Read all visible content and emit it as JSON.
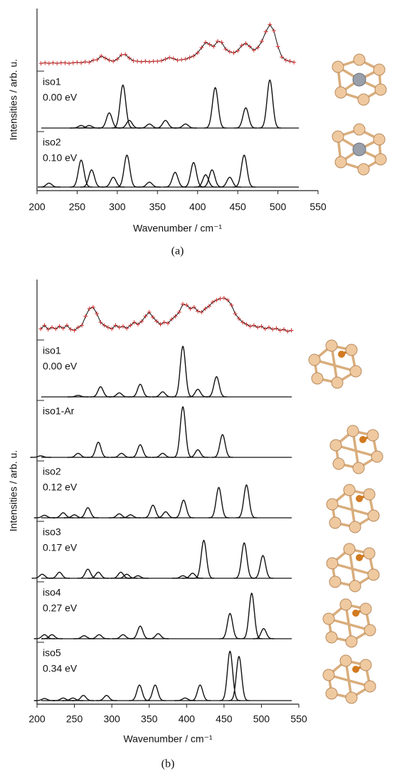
{
  "chart_data": [
    {
      "type": "line",
      "caption": "(a)",
      "xlabel": "Wavenumber / cm⁻¹",
      "ylabel": "Intensities / arb. u.",
      "xlim": [
        200,
        550
      ],
      "xticks": [
        200,
        250,
        300,
        350,
        400,
        450,
        500,
        550
      ],
      "ylim": [
        0,
        100
      ],
      "series": [
        {
          "type": "line",
          "marker": "+",
          "color": "#d03030",
          "x": [
            205,
            210,
            215,
            220,
            225,
            230,
            235,
            240,
            245,
            250,
            255,
            260,
            265,
            270,
            275,
            280,
            285,
            290,
            295,
            300,
            305,
            310,
            315,
            320,
            325,
            330,
            335,
            340,
            345,
            350,
            355,
            360,
            365,
            370,
            375,
            380,
            385,
            390,
            395,
            400,
            405,
            410,
            415,
            420,
            425,
            430,
            435,
            440,
            445,
            450,
            455,
            460,
            465,
            470,
            475,
            480,
            485,
            490,
            495,
            500,
            505,
            510,
            515,
            520
          ],
          "values": [
            8,
            9,
            8,
            9,
            8,
            9,
            9,
            8,
            9,
            10,
            9,
            11,
            10,
            14,
            15,
            22,
            18,
            14,
            12,
            16,
            24,
            25,
            18,
            13,
            12,
            11,
            12,
            11,
            12,
            12,
            13,
            16,
            19,
            17,
            14,
            15,
            16,
            19,
            22,
            28,
            38,
            48,
            44,
            40,
            50,
            48,
            35,
            30,
            28,
            32,
            42,
            46,
            40,
            33,
            38,
            50,
            68,
            82,
            70,
            40,
            20,
            14,
            12,
            10
          ]
        },
        {
          "type": "peaks",
          "name": "iso1",
          "energy": "0.00 eV",
          "color": "#111111",
          "x": [
            255,
            265,
            290,
            307,
            315,
            340,
            360,
            385,
            422,
            460,
            490
          ],
          "values": [
            5,
            5,
            30,
            85,
            15,
            8,
            15,
            8,
            80,
            40,
            95
          ]
        },
        {
          "type": "peaks",
          "name": "iso2",
          "energy": "0.10 eV",
          "color": "#111111",
          "x": [
            215,
            255,
            268,
            295,
            312,
            340,
            372,
            395,
            410,
            418,
            440,
            458
          ],
          "values": [
            8,
            55,
            35,
            20,
            65,
            10,
            30,
            50,
            25,
            35,
            20,
            65
          ]
        }
      ]
    },
    {
      "type": "line",
      "caption": "(b)",
      "xlabel": "Wavenumber / cm⁻¹",
      "ylabel": "Intensities / arb. u.",
      "xlim": [
        200,
        550
      ],
      "xticks": [
        200,
        250,
        300,
        350,
        400,
        450,
        500,
        550
      ],
      "ylim": [
        0,
        100
      ],
      "series": [
        {
          "type": "line",
          "marker": "+",
          "color": "#d03030",
          "x": [
            205,
            210,
            215,
            220,
            225,
            230,
            235,
            240,
            245,
            250,
            255,
            260,
            265,
            270,
            275,
            280,
            285,
            290,
            295,
            300,
            305,
            310,
            315,
            320,
            325,
            330,
            335,
            340,
            345,
            350,
            355,
            360,
            365,
            370,
            375,
            380,
            385,
            390,
            395,
            400,
            405,
            410,
            415,
            420,
            425,
            430,
            435,
            440,
            445,
            450,
            455,
            460,
            465,
            470,
            475,
            480,
            485,
            490,
            495,
            500,
            505,
            510,
            515,
            520,
            525,
            530,
            535,
            540
          ],
          "values": [
            15,
            22,
            14,
            18,
            15,
            20,
            16,
            22,
            14,
            12,
            18,
            22,
            40,
            55,
            58,
            45,
            28,
            22,
            18,
            15,
            22,
            18,
            20,
            16,
            22,
            28,
            24,
            30,
            40,
            48,
            38,
            30,
            24,
            28,
            26,
            34,
            40,
            48,
            64,
            62,
            55,
            58,
            50,
            48,
            55,
            60,
            68,
            72,
            75,
            76,
            72,
            62,
            45,
            35,
            28,
            24,
            20,
            22,
            18,
            20,
            15,
            18,
            14,
            16,
            12,
            14,
            10,
            12
          ]
        },
        {
          "type": "peaks",
          "name": "iso1",
          "energy": "0.00 eV",
          "color": "#111111",
          "x": [
            255,
            285,
            310,
            338,
            368,
            395,
            415,
            440
          ],
          "values": [
            3,
            20,
            8,
            25,
            10,
            100,
            15,
            40
          ]
        },
        {
          "type": "peaks",
          "name": "iso1-Ar",
          "color": "#111111",
          "x": [
            205,
            255,
            282,
            313,
            338,
            368,
            395,
            415,
            448
          ],
          "values": [
            3,
            8,
            30,
            8,
            25,
            8,
            100,
            15,
            45
          ]
        },
        {
          "type": "peaks",
          "name": "iso2",
          "energy": "0.12 eV",
          "color": "#111111",
          "x": [
            210,
            235,
            250,
            268,
            310,
            325,
            355,
            372,
            396,
            443,
            480
          ],
          "values": [
            5,
            10,
            6,
            20,
            8,
            6,
            25,
            12,
            35,
            60,
            65
          ]
        },
        {
          "type": "peaks",
          "name": "iso3",
          "energy": "0.17 eV",
          "color": "#111111",
          "x": [
            207,
            230,
            268,
            282,
            312,
            320,
            335,
            395,
            408,
            423,
            477,
            502
          ],
          "values": [
            8,
            12,
            18,
            12,
            12,
            8,
            5,
            5,
            10,
            75,
            70,
            45
          ]
        },
        {
          "type": "peaks",
          "name": "iso4",
          "energy": "0.27 eV",
          "color": "#111111",
          "x": [
            210,
            220,
            263,
            283,
            315,
            338,
            362,
            458,
            487,
            503
          ],
          "values": [
            8,
            8,
            6,
            8,
            8,
            25,
            10,
            50,
            90,
            20
          ]
        },
        {
          "type": "peaks",
          "name": "iso5",
          "energy": "0.34 eV",
          "color": "#111111",
          "x": [
            210,
            235,
            248,
            262,
            293,
            337,
            358,
            398,
            418,
            458,
            470
          ],
          "values": [
            4,
            5,
            5,
            10,
            10,
            30,
            30,
            5,
            30,
            95,
            85
          ]
        }
      ]
    }
  ]
}
